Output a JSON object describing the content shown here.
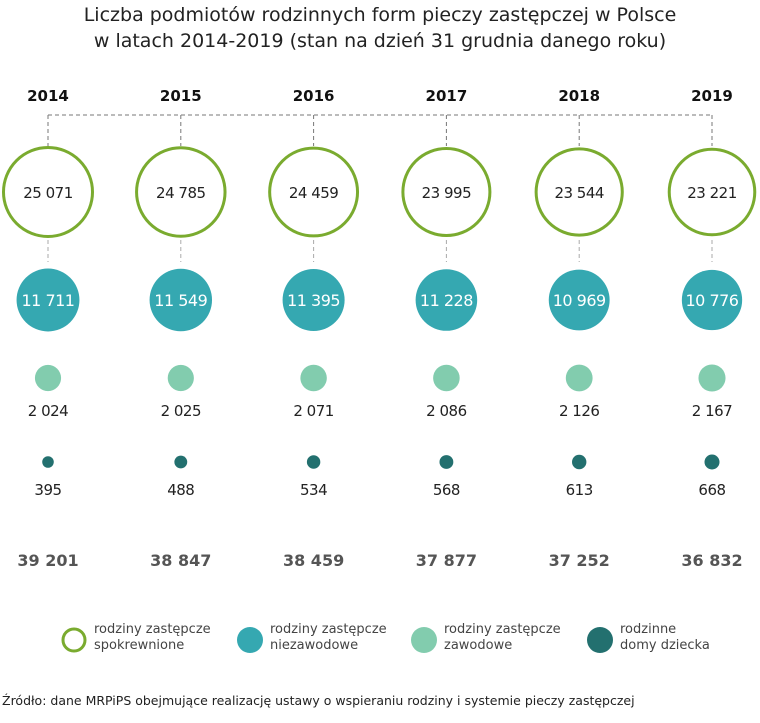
{
  "chart_data": {
    "type": "bubble",
    "title": "Liczba podmiotów rodzinnych form pieczy zastępczej w Polsce",
    "subtitle": "w latach 2014-2019 (stan na dzień 31 grudnia danego roku)",
    "categories": [
      "2014",
      "2015",
      "2016",
      "2017",
      "2018",
      "2019"
    ],
    "series": [
      {
        "name": "rodziny zastępcze spokrewnione",
        "color": "#7aab2f",
        "style": "outline",
        "values": [
          25071,
          24785,
          24459,
          23995,
          23544,
          23221
        ],
        "labels": [
          "25 071",
          "24 785",
          "24 459",
          "23 995",
          "23 544",
          "23 221"
        ]
      },
      {
        "name": "rodziny zastępcze niezawodowe",
        "color": "#35a8b1",
        "style": "filled",
        "values": [
          11711,
          11549,
          11395,
          11228,
          10969,
          10776
        ],
        "labels": [
          "11 711",
          "11 549",
          "11 395",
          "11 228",
          "10 969",
          "10 776"
        ]
      },
      {
        "name": "rodziny zastępcze zawodowe",
        "color": "#82ccae",
        "style": "filled",
        "values": [
          2024,
          2025,
          2071,
          2086,
          2126,
          2167
        ],
        "labels": [
          "2 024",
          "2 025",
          "2 071",
          "2 086",
          "2 126",
          "2 167"
        ]
      },
      {
        "name": "rodzinne domy dziecka",
        "color": "#23706f",
        "style": "filled",
        "values": [
          395,
          488,
          534,
          568,
          613,
          668
        ],
        "labels": [
          "395",
          "488",
          "534",
          "568",
          "613",
          "668"
        ]
      }
    ],
    "totals": [
      39201,
      38847,
      38459,
      37877,
      37252,
      36832
    ],
    "totals_labels": [
      "39 201",
      "38 847",
      "38 459",
      "37 877",
      "37 252",
      "36 832"
    ],
    "legend_placement": "bottom"
  },
  "legend": [
    {
      "line1": "rodziny zastępcze",
      "line2": "spokrewnione"
    },
    {
      "line1": "rodziny zastępcze",
      "line2": "niezawodowe"
    },
    {
      "line1": "rodziny zastępcze",
      "line2": "zawodowe"
    },
    {
      "line1": "rodzinne",
      "line2": "domy dziecka"
    }
  ],
  "source": "Źródło: dane MRPiPS obejmujące realizację ustawy o wspieraniu rodziny i systemie pieczy zastępczej"
}
